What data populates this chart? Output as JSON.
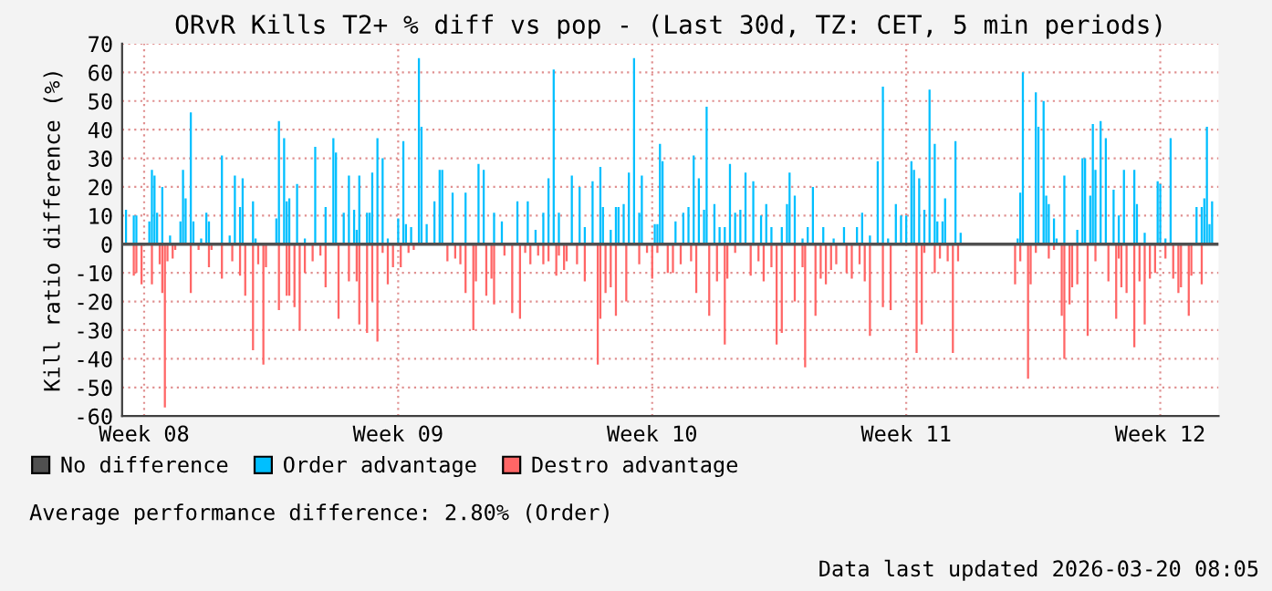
{
  "chart_data": {
    "type": "bar",
    "title": "ORvR Kills T2+ % diff vs pop - (Last 30d, TZ: CET, 5 min periods)",
    "ylabel": "Kill ratio difference (%)",
    "categories": [
      null,
      null,
      null,
      null,
      null,
      null,
      null,
      null,
      "Week 08",
      null,
      null,
      null,
      null,
      null,
      null,
      null,
      null,
      null,
      null,
      null,
      null,
      null,
      null,
      null,
      null,
      null,
      null,
      null,
      null,
      null,
      null,
      null,
      null,
      null,
      null,
      null,
      null,
      null,
      null,
      null,
      null,
      null,
      null,
      null,
      null,
      null,
      null,
      null,
      null,
      null,
      null,
      null,
      null,
      null,
      null,
      null,
      null,
      null,
      null,
      null,
      null,
      null,
      null,
      null,
      null,
      null,
      null,
      null,
      null,
      null,
      null,
      null,
      null,
      null,
      null,
      null,
      null,
      null,
      null,
      null,
      null,
      null,
      null,
      null,
      null,
      null,
      null,
      null,
      null,
      null,
      null,
      null,
      null,
      null,
      null,
      null,
      null,
      null,
      null,
      null,
      null,
      null,
      null,
      null,
      null,
      null,
      "Week 09",
      null,
      null,
      null,
      null,
      null,
      null,
      null,
      null,
      null,
      null,
      null,
      null,
      null,
      null,
      null,
      null,
      null,
      null,
      null,
      null,
      null,
      null,
      null,
      null,
      null,
      null,
      null,
      null,
      null,
      null,
      null,
      null,
      null,
      null,
      null,
      null,
      null,
      null,
      null,
      null,
      null,
      null,
      null,
      null,
      null,
      null,
      null,
      null,
      null,
      null,
      null,
      null,
      null,
      null,
      null,
      null,
      null,
      null,
      null,
      null,
      null,
      null,
      null,
      null,
      null,
      null,
      null,
      null,
      null,
      null,
      null,
      null,
      null,
      null,
      null,
      null,
      null,
      null,
      null,
      null,
      null,
      null,
      null,
      null,
      null,
      null,
      null,
      null,
      null,
      null,
      null,
      null,
      null,
      null,
      null,
      null,
      null,
      "Week 10",
      null,
      null,
      null,
      null,
      null,
      null,
      null,
      null,
      null,
      null,
      null,
      null,
      null,
      null,
      null,
      null,
      null,
      null,
      null,
      null,
      null,
      null,
      null,
      null,
      null,
      null,
      null,
      null,
      null,
      null,
      null,
      null,
      null,
      null,
      null,
      null,
      null,
      null,
      null,
      null,
      null,
      null,
      null,
      null,
      null,
      null,
      null,
      null,
      null,
      null,
      null,
      null,
      null,
      null,
      null,
      null,
      null,
      null,
      null,
      null,
      null,
      null,
      null,
      null,
      null,
      null,
      null,
      null,
      null,
      null,
      null,
      null,
      null,
      null,
      null,
      null,
      null,
      null,
      null,
      null,
      null,
      null,
      null,
      null,
      null,
      null,
      null,
      null,
      null,
      null,
      null,
      null,
      null,
      null,
      null,
      null,
      null,
      "Week 11",
      null,
      null,
      null,
      null,
      null,
      null,
      null,
      null,
      null,
      null,
      null,
      null,
      null,
      null,
      null,
      null,
      null,
      null,
      null,
      null,
      null,
      null,
      null,
      null,
      null,
      null,
      null,
      null,
      null,
      null,
      null,
      null,
      null,
      null,
      null,
      null,
      null,
      null,
      null,
      null,
      null,
      null,
      null,
      null,
      null,
      null,
      null,
      null,
      null,
      null,
      null,
      null,
      null,
      null,
      null,
      null,
      null,
      null,
      null,
      null,
      null,
      null,
      null,
      null,
      null,
      null,
      null,
      null,
      null,
      null,
      null,
      null,
      null,
      null,
      null,
      null,
      null,
      null,
      null,
      null,
      null,
      null,
      null,
      null,
      null,
      null,
      null,
      null,
      null,
      null,
      null,
      null,
      null,
      null,
      null,
      null,
      null,
      "Week 12",
      null,
      null,
      null,
      null,
      null,
      null,
      null,
      null,
      null,
      null,
      null,
      null,
      null,
      null,
      null,
      null,
      null,
      null,
      null,
      null,
      null,
      null
    ],
    "ylim": [
      -60,
      70
    ],
    "yticks": [
      -60,
      -50,
      -40,
      -30,
      -20,
      -10,
      0,
      10,
      20,
      30,
      40,
      50,
      60,
      70
    ],
    "grid": true,
    "legend": "bottom left",
    "annotations": [
      "Average performance difference: 2.80% (Order)",
      "Data last updated 2026-03-20 08:05"
    ],
    "series": [
      {
        "name": "No difference",
        "color": "#505050",
        "type": "line",
        "values": [
          0,
          0,
          0,
          0,
          0,
          0,
          0,
          0,
          0,
          0,
          0,
          0,
          0,
          0,
          0,
          0,
          0,
          0,
          0,
          0,
          0,
          0,
          0,
          0,
          0,
          0,
          0,
          0,
          0,
          0,
          0,
          0,
          0,
          0,
          0,
          0,
          0,
          0,
          0,
          0,
          0,
          0,
          0,
          0,
          0,
          0,
          0,
          0,
          0,
          0,
          0,
          0,
          0,
          0,
          0,
          0,
          0,
          0,
          0,
          0,
          0,
          0,
          0,
          0,
          0,
          0,
          0,
          0,
          0,
          0,
          0,
          0,
          0,
          0,
          0,
          0,
          0,
          0,
          0,
          0,
          0,
          0,
          0,
          0,
          0,
          0,
          0,
          0,
          0,
          0,
          0,
          0,
          0,
          0,
          0,
          0,
          0,
          0,
          0,
          0,
          0,
          0,
          0,
          0,
          0,
          0,
          0,
          0,
          0,
          0,
          0,
          0,
          0,
          0,
          0,
          0,
          0,
          0,
          0,
          0,
          0,
          0,
          0,
          0,
          0,
          0,
          0,
          0,
          0,
          0,
          0,
          0,
          0,
          0,
          0,
          0,
          0,
          0,
          0,
          0,
          0,
          0,
          0,
          0,
          0,
          0,
          0,
          0,
          0,
          0,
          0,
          0,
          0,
          0,
          0,
          0,
          0,
          0,
          0,
          0,
          0,
          0,
          0,
          0,
          0,
          0,
          0,
          0,
          0,
          0,
          0,
          0,
          0,
          0,
          0,
          0,
          0,
          0,
          0,
          0,
          0,
          0,
          0,
          0,
          0,
          0,
          0,
          0,
          0,
          0,
          0,
          0,
          0,
          0,
          0,
          0,
          0,
          0,
          0,
          0,
          0,
          0,
          0,
          0,
          0,
          0,
          0,
          0,
          0,
          0,
          0,
          0,
          0,
          0,
          0,
          0,
          0,
          0,
          0,
          0,
          0,
          0,
          0,
          0,
          0,
          0,
          0,
          0,
          0,
          0,
          0,
          0,
          0,
          0,
          0,
          0,
          0,
          0,
          0,
          0,
          0,
          0,
          0,
          0,
          0,
          0,
          0,
          0,
          0,
          0,
          0,
          0,
          0,
          0,
          0,
          0,
          0,
          0,
          0,
          0,
          0,
          0,
          0,
          0,
          0,
          0,
          0,
          0,
          0,
          0,
          0,
          0,
          0,
          0,
          0,
          0,
          0,
          0,
          0,
          0,
          0,
          0,
          0,
          0,
          0,
          0,
          0,
          0,
          0,
          0,
          0,
          0,
          0,
          0,
          0,
          0,
          0,
          0,
          0,
          0,
          0,
          0,
          0,
          0,
          0,
          0,
          0,
          0,
          0,
          0,
          0,
          0,
          0,
          0,
          0,
          0,
          0,
          0,
          0,
          0,
          0,
          0,
          0,
          0,
          0,
          0,
          0,
          0,
          0,
          0,
          0,
          0,
          0,
          0,
          0,
          0,
          0,
          0,
          0,
          0,
          0,
          0,
          0,
          0,
          0,
          0,
          0,
          0,
          0,
          0,
          0,
          0,
          0,
          0,
          0,
          0,
          0,
          0,
          0,
          0,
          0,
          0,
          0,
          0,
          0,
          0,
          0,
          0,
          0,
          0,
          0,
          0,
          0,
          0,
          0,
          0,
          0,
          0,
          0,
          0,
          0,
          0,
          0,
          0,
          0,
          0,
          0,
          0,
          0,
          0,
          0,
          0,
          0,
          0,
          0,
          0,
          0,
          0,
          0,
          0,
          0,
          0,
          0,
          0,
          0,
          0,
          0,
          0,
          0,
          0,
          0,
          0,
          0,
          0,
          0,
          0,
          0,
          0,
          0,
          0,
          0,
          0,
          0
        ]
      },
      {
        "name": "Order advantage",
        "color": "#00bfff",
        "values": [
          null,
          12,
          null,
          null,
          10,
          10,
          null,
          null,
          null,
          null,
          8,
          26,
          24,
          11,
          null,
          20,
          null,
          null,
          3,
          null,
          null,
          null,
          8,
          26,
          16,
          null,
          46,
          8,
          null,
          null,
          2,
          null,
          11,
          8,
          null,
          null,
          null,
          null,
          31,
          null,
          null,
          3,
          null,
          24,
          null,
          13,
          23,
          null,
          null,
          null,
          15,
          2,
          null,
          null,
          null,
          null,
          null,
          null,
          null,
          9,
          43,
          null,
          37,
          15,
          16,
          null,
          null,
          21,
          null,
          null,
          2,
          null,
          null,
          null,
          34,
          null,
          null,
          null,
          13,
          null,
          null,
          37,
          32,
          null,
          null,
          11,
          null,
          24,
          null,
          12,
          5,
          24,
          null,
          null,
          11,
          11,
          25,
          null,
          37,
          null,
          30,
          null,
          2,
          null,
          null,
          null,
          9,
          null,
          36,
          7,
          null,
          6,
          null,
          null,
          65,
          41,
          null,
          7,
          null,
          null,
          15,
          null,
          26,
          26,
          null,
          null,
          null,
          18,
          null,
          null,
          null,
          null,
          18,
          null,
          null,
          null,
          null,
          28,
          null,
          26,
          null,
          null,
          null,
          11,
          null,
          null,
          8,
          null,
          null,
          null,
          null,
          null,
          15,
          null,
          null,
          null,
          15,
          null,
          null,
          5,
          null,
          null,
          11,
          null,
          23,
          null,
          61,
          null,
          11,
          null,
          null,
          null,
          null,
          24,
          null,
          null,
          20,
          null,
          6,
          null,
          null,
          22,
          null,
          null,
          27,
          13,
          null,
          null,
          5,
          null,
          13,
          13,
          null,
          14,
          null,
          25,
          null,
          65,
          null,
          11,
          24,
          null,
          null,
          null,
          null,
          7,
          7,
          35,
          29,
          null,
          null,
          null,
          null,
          8,
          null,
          null,
          11,
          null,
          13,
          null,
          31,
          null,
          23,
          null,
          12,
          48,
          null,
          null,
          14,
          null,
          6,
          null,
          6,
          null,
          28,
          null,
          11,
          null,
          12,
          null,
          25,
          null,
          null,
          22,
          null,
          null,
          10,
          null,
          14,
          null,
          6,
          null,
          null,
          null,
          6,
          null,
          14,
          25,
          null,
          17,
          null,
          null,
          2,
          null,
          6,
          null,
          20,
          null,
          null,
          null,
          6,
          null,
          null,
          null,
          2,
          null,
          null,
          null,
          6,
          null,
          null,
          null,
          null,
          6,
          null,
          11,
          null,
          null,
          3,
          null,
          null,
          29,
          null,
          55,
          null,
          2,
          null,
          null,
          14,
          null,
          10,
          null,
          10,
          null,
          29,
          26,
          null,
          23,
          null,
          12,
          null,
          54,
          null,
          35,
          8,
          null,
          8,
          16,
          null,
          null,
          null,
          36,
          null,
          4,
          null,
          null,
          null,
          null,
          null,
          null,
          null,
          null,
          null,
          null,
          null,
          null,
          null,
          null,
          null,
          null,
          null,
          null,
          null,
          null,
          null,
          2,
          18,
          60,
          null,
          null,
          null,
          null,
          53,
          41,
          null,
          50,
          17,
          14,
          null,
          9,
          2,
          null,
          null,
          24,
          null,
          null,
          null,
          null,
          5,
          null,
          30,
          30,
          null,
          17,
          42,
          26,
          null,
          43,
          null,
          37,
          null,
          null,
          19,
          null,
          10,
          null,
          26,
          null,
          null,
          null,
          26,
          14,
          null,
          null,
          4,
          null,
          null,
          null,
          null,
          22,
          21,
          null,
          2,
          null,
          37,
          null,
          null,
          null,
          null,
          null,
          null,
          null,
          null,
          null,
          13,
          null,
          13,
          16,
          41,
          7,
          15,
          null,
          null
        ]
      },
      {
        "name": "Destro advantage",
        "color": "#ff6666",
        "values": [
          null,
          null,
          null,
          null,
          -11,
          -10,
          null,
          -14,
          null,
          null,
          null,
          -14,
          null,
          null,
          -7,
          -17,
          -57,
          -6,
          null,
          -5,
          -2,
          null,
          null,
          null,
          null,
          null,
          -17,
          null,
          null,
          -2,
          null,
          null,
          null,
          -8,
          -2,
          null,
          null,
          null,
          -12,
          null,
          null,
          null,
          -6,
          null,
          null,
          -11,
          null,
          -18,
          null,
          null,
          -37,
          null,
          -7,
          null,
          -42,
          -8,
          null,
          null,
          null,
          null,
          -23,
          null,
          null,
          -18,
          -18,
          null,
          -22,
          null,
          -30,
          null,
          -10,
          null,
          null,
          -6,
          null,
          null,
          -4,
          null,
          -15,
          null,
          null,
          null,
          null,
          -26,
          null,
          null,
          null,
          -13,
          null,
          null,
          -13,
          -28,
          null,
          null,
          -31,
          null,
          -20,
          null,
          -34,
          null,
          -3,
          null,
          -14,
          null,
          -8,
          null,
          null,
          -8,
          null,
          null,
          -3,
          null,
          -2,
          null,
          null,
          null,
          null,
          null,
          null,
          null,
          null,
          null,
          null,
          null,
          null,
          -6,
          null,
          null,
          -5,
          null,
          -7,
          null,
          -17,
          null,
          null,
          -30,
          -13,
          null,
          null,
          null,
          -18,
          null,
          -12,
          -21,
          null,
          null,
          null,
          -4,
          null,
          null,
          -24,
          null,
          null,
          -26,
          null,
          -3,
          null,
          -7,
          null,
          null,
          -4,
          null,
          -7,
          null,
          -6,
          null,
          null,
          -11,
          -4,
          null,
          -9,
          -6,
          null,
          null,
          null,
          -7,
          null,
          null,
          -13,
          null,
          null,
          null,
          null,
          -42,
          -26,
          null,
          -17,
          null,
          -15,
          null,
          -25,
          null,
          null,
          null,
          -20,
          null,
          null,
          null,
          null,
          -7,
          null,
          null,
          -3,
          null,
          -12,
          null,
          -3,
          null,
          null,
          null,
          -10,
          null,
          -10,
          null,
          null,
          -7,
          null,
          null,
          null,
          -6,
          null,
          -17,
          null,
          null,
          null,
          null,
          -25,
          null,
          null,
          -13,
          null,
          null,
          -35,
          -12,
          null,
          null,
          -3,
          null,
          null,
          null,
          null,
          null,
          -11,
          null,
          null,
          -6,
          null,
          -13,
          null,
          null,
          -8,
          null,
          -35,
          null,
          -31,
          null,
          null,
          null,
          null,
          -20,
          null,
          null,
          -8,
          -43,
          null,
          null,
          null,
          -25,
          null,
          -12,
          null,
          -14,
          null,
          -9,
          null,
          -7,
          null,
          null,
          null,
          -10,
          null,
          -12,
          null,
          null,
          -7,
          null,
          -13,
          null,
          -32,
          null,
          null,
          null,
          null,
          -22,
          null,
          null,
          -23,
          null,
          null,
          null,
          null,
          null,
          null,
          null,
          null,
          null,
          -38,
          null,
          -28,
          -3,
          null,
          null,
          null,
          -10,
          null,
          -5,
          null,
          null,
          -6,
          null,
          -38,
          null,
          -6,
          null,
          null,
          null,
          null,
          null,
          null,
          null,
          null,
          null,
          null,
          null,
          null,
          null,
          null,
          null,
          null,
          null,
          null,
          null,
          null,
          null,
          -14,
          null,
          -6,
          null,
          null,
          -47,
          -14,
          null,
          -3,
          null,
          null,
          null,
          null,
          -5,
          null,
          -2,
          null,
          null,
          -25,
          -40,
          null,
          -21,
          -15,
          null,
          -14,
          null,
          null,
          null,
          -32,
          null,
          null,
          -6,
          null,
          null,
          null,
          null,
          -13,
          null,
          null,
          -26,
          -5,
          -15,
          null,
          -17,
          null,
          null,
          -36,
          null,
          -13,
          null,
          -28,
          null,
          -12,
          null,
          -10,
          null,
          null,
          null,
          -5,
          null,
          null,
          -12,
          null,
          -17,
          -15,
          null,
          null,
          -25,
          -11,
          null,
          null,
          null,
          -14,
          null,
          null,
          null,
          null,
          null,
          null
        ]
      }
    ]
  }
}
